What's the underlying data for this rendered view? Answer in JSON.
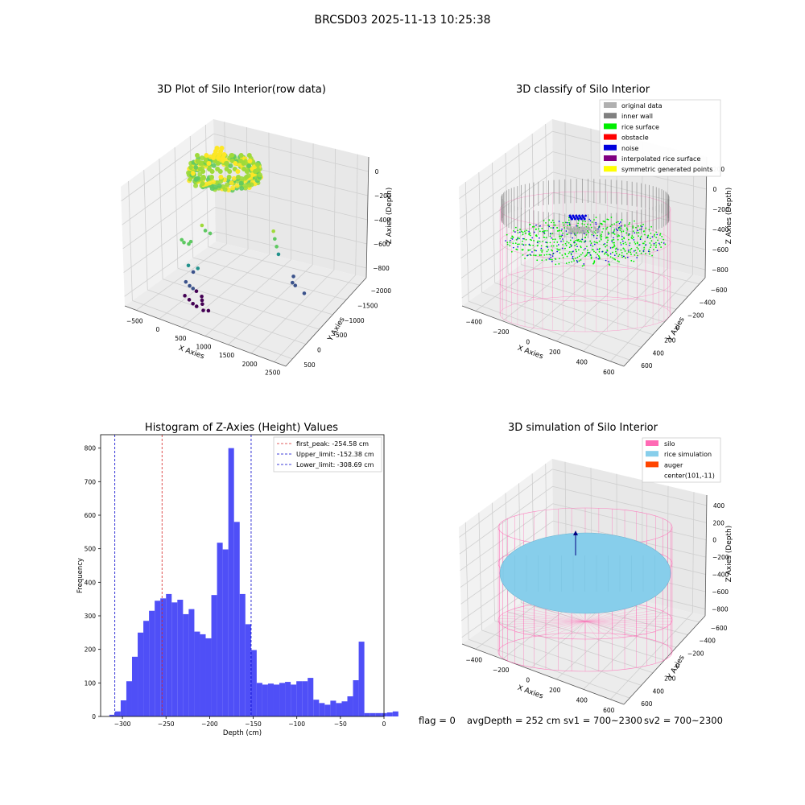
{
  "figure": {
    "suptitle": "BRCSD03 2025-11-13 10:25:38",
    "footer": {
      "flag": "flag = 0",
      "avg_depth": "avgDepth = 252 cm",
      "sv1": "sv1 = 700~2300",
      "sv2": "sv2 = 700~2300"
    }
  },
  "colors": {
    "hist_bar": "#4f4ff7",
    "peak_line": "#d62728",
    "limit_line": "#0000cc",
    "silo": "#ff69b4",
    "rice_sim": "#87ceeb",
    "auger": "#ff4500",
    "original": "#b0b0b0",
    "inner_wall": "#808080",
    "rice_surface": "#00ee00",
    "obstacle": "#ff0000",
    "noise": "#0000dd",
    "interp": "#800080",
    "symmetric": "#ffff00"
  },
  "chart_data": [
    {
      "type": "scatter",
      "title": "3D Plot of Silo Interior(row data)",
      "xlabel": "X Axies",
      "ylabel": "Y Axies",
      "zlabel": "Z Axies (Depth)",
      "x_ticks": [
        "−500",
        "0",
        "500",
        "1000",
        "1500",
        "2000",
        "2500"
      ],
      "y_ticks": [
        "500",
        "0",
        "−500",
        "−1000",
        "−1500",
        "−2000"
      ],
      "z_ticks": [
        "0",
        "−200",
        "−400",
        "−600",
        "−800"
      ],
      "xlim": [
        -600,
        2700
      ],
      "ylim": [
        -2000,
        600
      ],
      "zlim": [
        -950,
        0
      ],
      "colormap": "viridis",
      "outliers": [
        [
          300,
          -100,
          -400
        ],
        [
          380,
          20,
          -420
        ],
        [
          450,
          -60,
          -430
        ],
        [
          520,
          40,
          -410
        ],
        [
          650,
          -250,
          -280
        ],
        [
          700,
          -300,
          -320
        ],
        [
          780,
          -350,
          -340
        ],
        [
          400,
          -200,
          -600
        ],
        [
          480,
          -250,
          -650
        ],
        [
          560,
          -280,
          -620
        ],
        [
          350,
          -200,
          -730
        ],
        [
          400,
          -280,
          -760
        ],
        [
          460,
          -300,
          -780
        ],
        [
          520,
          -320,
          -800
        ],
        [
          300,
          -300,
          -840
        ],
        [
          380,
          -320,
          -870
        ],
        [
          440,
          -360,
          -900
        ],
        [
          500,
          -400,
          -920
        ],
        [
          600,
          -400,
          -840
        ],
        [
          600,
          -420,
          -870
        ],
        [
          600,
          -440,
          -900
        ],
        [
          700,
          -500,
          -950
        ],
        [
          600,
          -500,
          -950
        ],
        [
          2000,
          -400,
          -300
        ],
        [
          2020,
          -420,
          -360
        ],
        [
          2050,
          -440,
          -420
        ],
        [
          2080,
          -460,
          -480
        ],
        [
          2300,
          -700,
          -650
        ],
        [
          2250,
          -800,
          -700
        ],
        [
          2350,
          -650,
          -720
        ],
        [
          2450,
          -900,
          -780
        ]
      ]
    },
    {
      "type": "scatter",
      "title": "3D classify of Silo Interior",
      "xlabel": "X Axies",
      "ylabel": "Y Axies",
      "zlabel": "Z Axies (Depth)",
      "x_ticks": [
        "−400",
        "−200",
        "0",
        "200",
        "400",
        "600"
      ],
      "y_ticks": [
        "600",
        "400",
        "200",
        "0",
        "−200",
        "−400",
        "−600"
      ],
      "z_ticks": [
        "200",
        "0",
        "−200",
        "−400",
        "−600",
        "−800"
      ],
      "xlim": [
        -500,
        700
      ],
      "ylim": [
        -650,
        650
      ],
      "zlim": [
        -900,
        300
      ],
      "legend": {
        "position": "upper right",
        "entries": [
          {
            "label": "original data",
            "color_key": "original"
          },
          {
            "label": "inner wall",
            "color_key": "inner_wall"
          },
          {
            "label": "rice surface",
            "color_key": "rice_surface"
          },
          {
            "label": "obstacle",
            "color_key": "obstacle"
          },
          {
            "label": "noise",
            "color_key": "noise"
          },
          {
            "label": "interpolated rice surface",
            "color_key": "interp"
          },
          {
            "label": "symmetric generated points",
            "color_key": "symmetric"
          }
        ]
      }
    },
    {
      "type": "bar",
      "title": "Histogram of Z-Axies (Height) Values",
      "xlabel": "Depth (cm)",
      "ylabel": "Frequency",
      "xlim": [
        -325,
        0
      ],
      "ylim": [
        0,
        840
      ],
      "x_ticks": [
        -300,
        -250,
        -200,
        -150,
        -100,
        -50,
        0
      ],
      "y_ticks": [
        0,
        100,
        200,
        300,
        400,
        500,
        600,
        700,
        800
      ],
      "bin_width": 6.5,
      "bins_start": -315,
      "values": [
        5,
        15,
        48,
        105,
        178,
        250,
        285,
        315,
        345,
        352,
        365,
        340,
        348,
        305,
        320,
        253,
        245,
        233,
        362,
        518,
        498,
        800,
        580,
        365,
        275,
        198,
        100,
        95,
        98,
        95,
        100,
        103,
        95,
        105,
        105,
        115,
        50,
        40,
        35,
        47,
        40,
        45,
        60,
        108,
        223,
        10,
        10,
        10,
        10,
        12,
        15
      ],
      "lines": [
        {
          "label": "first_peak: -254.58 cm",
          "x": -254.58,
          "color_key": "peak_line"
        },
        {
          "label": "Upper_limit: -152.38 cm",
          "x": -152.38,
          "color_key": "limit_line"
        },
        {
          "label": "Lower_limit: -308.69 cm",
          "x": -308.69,
          "color_key": "limit_line"
        }
      ],
      "legend": "upper right"
    },
    {
      "type": "surface",
      "title": "3D simulation of Silo Interior",
      "xlabel": "X Axies",
      "ylabel": "Y Axies",
      "zlabel": "Z Axies (Depth)",
      "x_ticks": [
        "−400",
        "−200",
        "0",
        "200",
        "400",
        "600"
      ],
      "y_ticks": [
        "600",
        "400",
        "200",
        "0",
        "−200",
        "−400",
        "−600"
      ],
      "z_ticks": [
        "400",
        "200",
        "0",
        "−200",
        "−400",
        "−600",
        "−800"
      ],
      "xlim": [
        -500,
        700
      ],
      "ylim": [
        -650,
        650
      ],
      "zlim": [
        -900,
        450
      ],
      "legend": {
        "position": "upper right",
        "entries": [
          {
            "label": "silo",
            "color_key": "silo"
          },
          {
            "label": "rice simulation",
            "color_key": "rice_sim"
          },
          {
            "label": "auger",
            "color_key": "auger"
          },
          {
            "label": "center(101,-11)",
            "color_key": ""
          }
        ]
      }
    }
  ]
}
